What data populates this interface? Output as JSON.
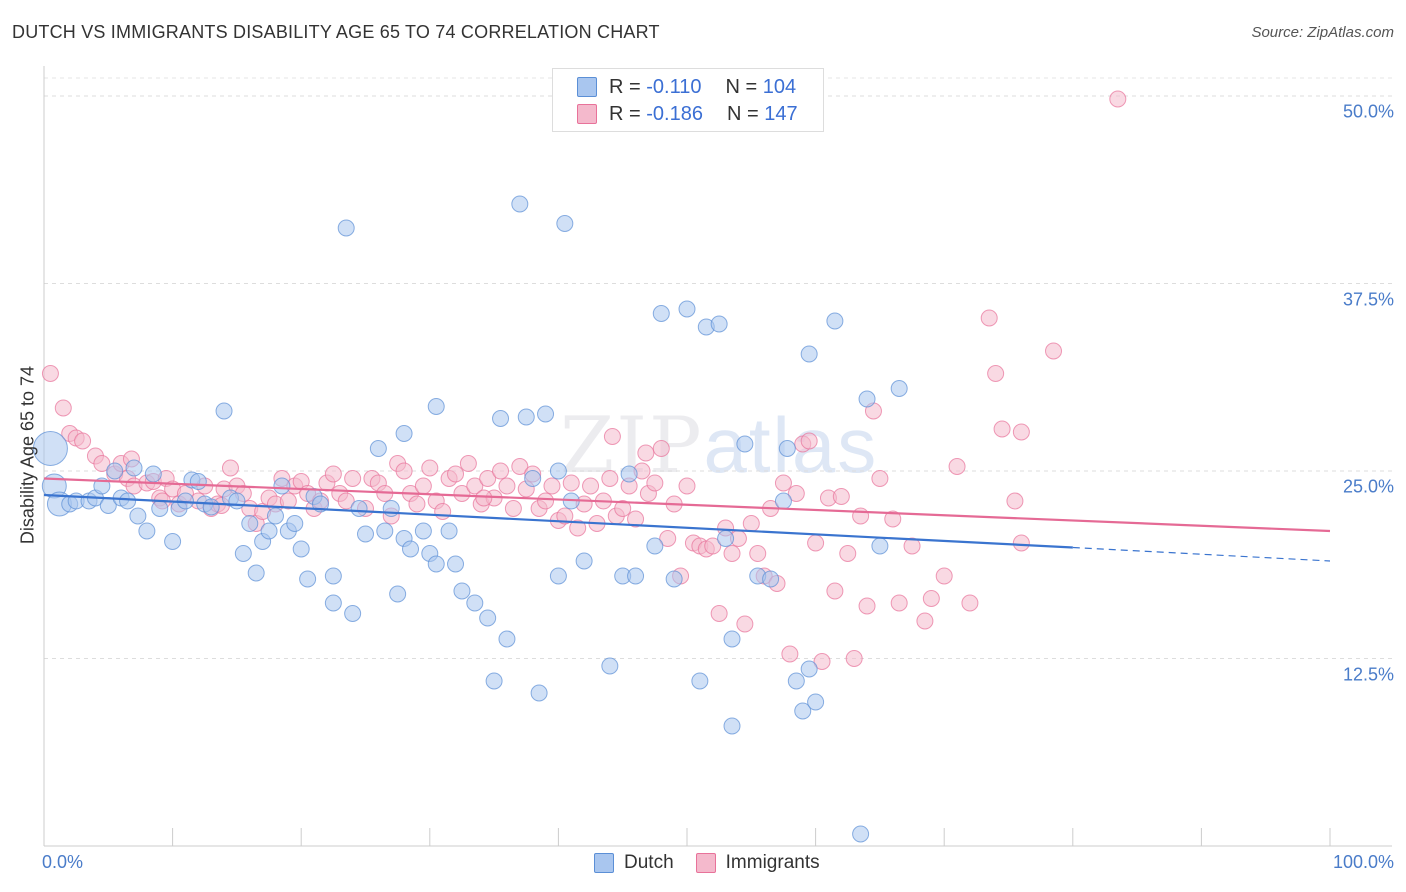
{
  "header": {
    "title": "DUTCH VS IMMIGRANTS DISABILITY AGE 65 TO 74 CORRELATION CHART",
    "source": "Source: ZipAtlas.com"
  },
  "watermark": {
    "part1": "ZIP",
    "part2": "atlas"
  },
  "legend": {
    "rows": [
      {
        "r_label": "R =",
        "r_value": "-0.110",
        "n_label": "N =",
        "n_value": "104"
      },
      {
        "r_label": "R =",
        "r_value": "-0.186",
        "n_label": "N =",
        "n_value": "147"
      }
    ]
  },
  "bottom_legend": {
    "dutch": "Dutch",
    "immigrants": "Immigrants"
  },
  "chart_data": {
    "type": "scatter",
    "title": "DUTCH VS IMMIGRANTS DISABILITY AGE 65 TO 74 CORRELATION CHART",
    "xlabel": "",
    "ylabel": "Disability Age 65 to 74",
    "xlim": [
      0,
      100
    ],
    "ylim": [
      0,
      52
    ],
    "x_tick_labels": [
      "0.0%",
      "100.0%"
    ],
    "y_ticks": [
      12.5,
      25.0,
      37.5,
      50.0
    ],
    "y_tick_labels": [
      "12.5%",
      "25.0%",
      "37.5%",
      "50.0%"
    ],
    "grid": "horizontal dashed",
    "legend_placement": "top-center",
    "colors": {
      "dutch": "#5b8fd6",
      "dutch_fill": "#a9c6ef",
      "immigrants": "#e8729a",
      "immigrants_fill": "#f4b9cc"
    },
    "series": [
      {
        "name": "Dutch",
        "r": -0.11,
        "n": 104,
        "trend": {
          "x0": 0,
          "y0": 23.4,
          "x1": 80,
          "y1": 19.9,
          "dash_to_x": 100,
          "dash_to_y": 19.0
        },
        "points": [
          [
            0.5,
            26.5
          ],
          [
            0.8,
            24.0
          ],
          [
            1.2,
            22.8
          ],
          [
            2.0,
            22.8
          ],
          [
            2.5,
            23.0
          ],
          [
            3.5,
            23.0
          ],
          [
            4.0,
            23.2
          ],
          [
            4.5,
            24.0
          ],
          [
            5.0,
            22.7
          ],
          [
            5.5,
            25.0
          ],
          [
            6.0,
            23.2
          ],
          [
            6.5,
            23.0
          ],
          [
            7.0,
            25.2
          ],
          [
            7.3,
            22.0
          ],
          [
            8.0,
            21.0
          ],
          [
            8.5,
            24.8
          ],
          [
            9.0,
            22.5
          ],
          [
            10.0,
            20.3
          ],
          [
            10.5,
            22.5
          ],
          [
            11.0,
            23.0
          ],
          [
            11.5,
            24.4
          ],
          [
            12.0,
            24.3
          ],
          [
            12.5,
            22.8
          ],
          [
            13.0,
            22.6
          ],
          [
            14.0,
            29.0
          ],
          [
            14.5,
            23.2
          ],
          [
            15.0,
            23.0
          ],
          [
            15.5,
            19.5
          ],
          [
            16.0,
            21.5
          ],
          [
            16.5,
            18.2
          ],
          [
            17.0,
            20.3
          ],
          [
            17.5,
            21.0
          ],
          [
            18.0,
            22.0
          ],
          [
            18.5,
            24.0
          ],
          [
            19.0,
            21.0
          ],
          [
            19.5,
            21.5
          ],
          [
            20.0,
            19.8
          ],
          [
            20.5,
            17.8
          ],
          [
            21.0,
            23.3
          ],
          [
            21.5,
            22.8
          ],
          [
            22.5,
            16.2
          ],
          [
            22.5,
            18.0
          ],
          [
            23.5,
            41.2
          ],
          [
            24.0,
            15.5
          ],
          [
            24.5,
            22.5
          ],
          [
            25.0,
            20.8
          ],
          [
            26.0,
            26.5
          ],
          [
            26.5,
            21.0
          ],
          [
            27.0,
            22.5
          ],
          [
            27.5,
            16.8
          ],
          [
            28.0,
            20.5
          ],
          [
            28.5,
            19.8
          ],
          [
            28.0,
            27.5
          ],
          [
            29.5,
            21.0
          ],
          [
            30.0,
            19.5
          ],
          [
            30.5,
            18.8
          ],
          [
            30.5,
            29.3
          ],
          [
            31.5,
            21.0
          ],
          [
            32.0,
            18.8
          ],
          [
            32.5,
            17.0
          ],
          [
            33.5,
            16.2
          ],
          [
            34.5,
            15.2
          ],
          [
            35.0,
            11.0
          ],
          [
            35.5,
            28.5
          ],
          [
            36.0,
            13.8
          ],
          [
            37.5,
            28.6
          ],
          [
            37.0,
            42.8
          ],
          [
            38.0,
            24.5
          ],
          [
            38.5,
            10.2
          ],
          [
            39.0,
            28.8
          ],
          [
            40.0,
            18.0
          ],
          [
            40.0,
            25.0
          ],
          [
            40.5,
            41.5
          ],
          [
            41.0,
            23.0
          ],
          [
            42.0,
            19.0
          ],
          [
            44.0,
            12.0
          ],
          [
            45.0,
            18.0
          ],
          [
            45.5,
            24.8
          ],
          [
            46.0,
            18.0
          ],
          [
            47.5,
            20.0
          ],
          [
            48.0,
            35.5
          ],
          [
            49.0,
            17.8
          ],
          [
            50.0,
            35.8
          ],
          [
            51.0,
            11.0
          ],
          [
            51.5,
            34.6
          ],
          [
            52.5,
            34.8
          ],
          [
            53.0,
            20.5
          ],
          [
            53.5,
            8.0
          ],
          [
            53.5,
            13.8
          ],
          [
            54.5,
            26.8
          ],
          [
            55.5,
            18.0
          ],
          [
            56.5,
            17.8
          ],
          [
            57.5,
            23.0
          ],
          [
            57.8,
            26.5
          ],
          [
            58.5,
            11.0
          ],
          [
            59.0,
            9.0
          ],
          [
            59.5,
            11.8
          ],
          [
            59.5,
            32.8
          ],
          [
            60.0,
            9.6
          ],
          [
            61.5,
            35.0
          ],
          [
            63.5,
            0.8
          ],
          [
            64.0,
            29.8
          ],
          [
            65.0,
            20.0
          ],
          [
            66.5,
            30.5
          ]
        ]
      },
      {
        "name": "Immigrants",
        "r": -0.186,
        "n": 147,
        "trend": {
          "x0": 0,
          "y0": 24.5,
          "x1": 100,
          "y1": 21.0
        },
        "points": [
          [
            0.5,
            31.5
          ],
          [
            1.5,
            29.2
          ],
          [
            2.0,
            27.5
          ],
          [
            2.5,
            27.2
          ],
          [
            3.0,
            27.0
          ],
          [
            4.0,
            26.0
          ],
          [
            4.5,
            25.5
          ],
          [
            5.5,
            24.8
          ],
          [
            6.0,
            25.5
          ],
          [
            6.5,
            24.5
          ],
          [
            7.0,
            24.0
          ],
          [
            8.0,
            24.2
          ],
          [
            8.5,
            24.3
          ],
          [
            9.0,
            23.2
          ],
          [
            9.5,
            24.5
          ],
          [
            10.0,
            23.8
          ],
          [
            10.5,
            22.8
          ],
          [
            11.0,
            23.5
          ],
          [
            12.0,
            23.0
          ],
          [
            12.5,
            24.0
          ],
          [
            13.0,
            22.5
          ],
          [
            13.5,
            22.8
          ],
          [
            14.0,
            23.8
          ],
          [
            14.5,
            25.2
          ],
          [
            15.0,
            24.0
          ],
          [
            15.5,
            23.5
          ],
          [
            16.0,
            22.5
          ],
          [
            16.5,
            21.5
          ],
          [
            17.0,
            22.3
          ],
          [
            17.5,
            23.2
          ],
          [
            18.0,
            22.8
          ],
          [
            18.5,
            24.5
          ],
          [
            19.0,
            23.0
          ],
          [
            19.5,
            24.0
          ],
          [
            20.0,
            24.3
          ],
          [
            20.5,
            23.5
          ],
          [
            21.0,
            22.5
          ],
          [
            21.5,
            23.0
          ],
          [
            22.0,
            24.2
          ],
          [
            22.5,
            24.8
          ],
          [
            23.0,
            23.5
          ],
          [
            23.5,
            23.0
          ],
          [
            24.0,
            24.5
          ],
          [
            25.0,
            22.5
          ],
          [
            25.5,
            24.5
          ],
          [
            26.0,
            24.2
          ],
          [
            26.5,
            23.5
          ],
          [
            27.0,
            22.0
          ],
          [
            27.5,
            25.5
          ],
          [
            28.0,
            25.0
          ],
          [
            28.5,
            23.5
          ],
          [
            29.0,
            22.8
          ],
          [
            29.5,
            24.0
          ],
          [
            30.0,
            25.2
          ],
          [
            30.5,
            23.0
          ],
          [
            31.0,
            22.3
          ],
          [
            31.5,
            24.5
          ],
          [
            32.0,
            24.8
          ],
          [
            32.5,
            23.5
          ],
          [
            33.0,
            25.5
          ],
          [
            33.5,
            24.0
          ],
          [
            34.0,
            22.8
          ],
          [
            34.5,
            24.5
          ],
          [
            35.0,
            23.2
          ],
          [
            35.5,
            25.0
          ],
          [
            36.0,
            24.0
          ],
          [
            36.5,
            22.5
          ],
          [
            37.0,
            25.3
          ],
          [
            37.5,
            23.8
          ],
          [
            38.0,
            24.8
          ],
          [
            38.5,
            22.5
          ],
          [
            39.0,
            23.0
          ],
          [
            39.5,
            24.0
          ],
          [
            40.0,
            21.7
          ],
          [
            40.5,
            22.0
          ],
          [
            41.0,
            24.2
          ],
          [
            41.5,
            21.2
          ],
          [
            42.0,
            22.8
          ],
          [
            42.5,
            24.0
          ],
          [
            43.0,
            21.5
          ],
          [
            43.5,
            23.0
          ],
          [
            44.0,
            24.5
          ],
          [
            44.5,
            22.0
          ],
          [
            45.0,
            22.5
          ],
          [
            45.5,
            24.0
          ],
          [
            46.0,
            21.8
          ],
          [
            46.5,
            25.0
          ],
          [
            47.0,
            23.5
          ],
          [
            47.5,
            24.2
          ],
          [
            48.0,
            26.5
          ],
          [
            48.5,
            20.5
          ],
          [
            49.0,
            22.8
          ],
          [
            49.5,
            18.0
          ],
          [
            50.0,
            24.0
          ],
          [
            50.5,
            20.2
          ],
          [
            51.0,
            20.0
          ],
          [
            51.5,
            19.8
          ],
          [
            52.0,
            20.0
          ],
          [
            52.5,
            15.5
          ],
          [
            53.0,
            21.2
          ],
          [
            53.5,
            19.5
          ],
          [
            54.0,
            20.5
          ],
          [
            54.5,
            14.8
          ],
          [
            55.0,
            21.5
          ],
          [
            55.5,
            19.5
          ],
          [
            56.0,
            18.0
          ],
          [
            56.5,
            22.5
          ],
          [
            57.0,
            17.5
          ],
          [
            57.5,
            24.2
          ],
          [
            58.0,
            12.8
          ],
          [
            58.5,
            23.5
          ],
          [
            59.0,
            26.8
          ],
          [
            59.5,
            27.0
          ],
          [
            60.0,
            20.2
          ],
          [
            60.5,
            12.3
          ],
          [
            61.0,
            23.2
          ],
          [
            61.5,
            17.0
          ],
          [
            62.0,
            23.3
          ],
          [
            62.5,
            19.5
          ],
          [
            63.0,
            12.5
          ],
          [
            63.5,
            22.0
          ],
          [
            64.0,
            16.0
          ],
          [
            64.5,
            29.0
          ],
          [
            65.0,
            24.5
          ],
          [
            66.0,
            21.8
          ],
          [
            66.5,
            16.2
          ],
          [
            67.5,
            20.0
          ],
          [
            68.5,
            15.0
          ],
          [
            69.0,
            16.5
          ],
          [
            70.0,
            18.0
          ],
          [
            71.0,
            25.3
          ],
          [
            72.0,
            16.2
          ],
          [
            73.5,
            35.2
          ],
          [
            74.0,
            31.5
          ],
          [
            74.5,
            27.8
          ],
          [
            75.5,
            23.0
          ],
          [
            76.0,
            20.2
          ],
          [
            76.0,
            27.6
          ],
          [
            78.5,
            33.0
          ],
          [
            83.5,
            49.8
          ],
          [
            6.8,
            25.8
          ],
          [
            9.2,
            23.0
          ],
          [
            13.8,
            22.7
          ],
          [
            44.2,
            27.3
          ],
          [
            34.2,
            23.2
          ],
          [
            46.8,
            26.2
          ]
        ]
      }
    ]
  }
}
